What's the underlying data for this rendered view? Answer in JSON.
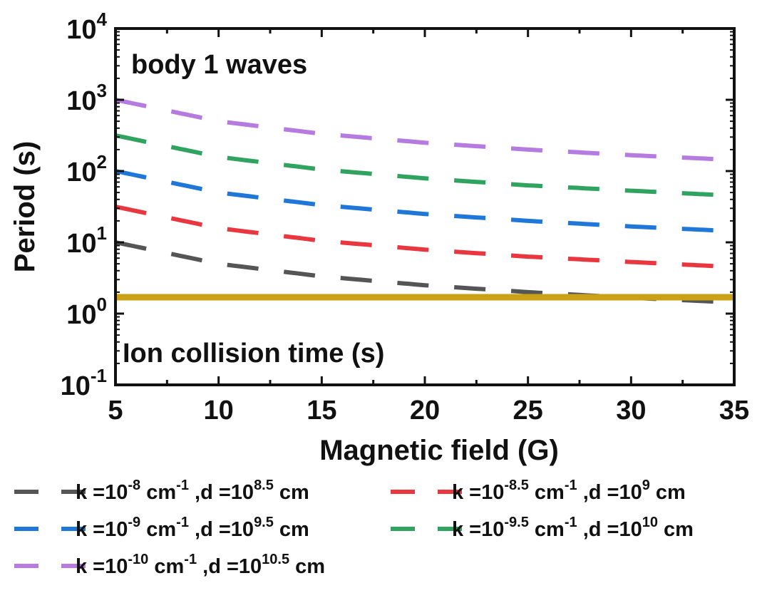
{
  "chart_data": {
    "type": "line",
    "title": "",
    "xlabel": "Magnetic field (G)",
    "ylabel": "Period (s)",
    "xlim": [
      5,
      35
    ],
    "ylim": [
      0.1,
      10000
    ],
    "yscale": "log",
    "grid": false,
    "legend_position": "bottom",
    "x_ticks": [
      "5",
      "10",
      "15",
      "20",
      "25",
      "30",
      "35"
    ],
    "y_ticks": [
      {
        "base": "10",
        "exp": "-1",
        "value": 0.1
      },
      {
        "base": "10",
        "exp": "0",
        "value": 1
      },
      {
        "base": "10",
        "exp": "1",
        "value": 10
      },
      {
        "base": "10",
        "exp": "2",
        "value": 100
      },
      {
        "base": "10",
        "exp": "3",
        "value": 1000
      },
      {
        "base": "10",
        "exp": "4",
        "value": 10000
      }
    ],
    "annotations": [
      "body 1 waves",
      "Ion collision time (s)"
    ],
    "x": [
      5,
      10,
      15,
      20,
      25,
      30,
      35
    ],
    "series": [
      {
        "color": "#555555",
        "style": "dashed",
        "values": [
          10,
          5,
          3.33,
          2.5,
          2.0,
          1.67,
          1.43
        ],
        "legend": {
          "k_exp": "-8",
          "cm_exp": "-1",
          "d_exp": "8.5"
        }
      },
      {
        "color": "#e8373e",
        "style": "dashed",
        "values": [
          31.6,
          15.8,
          10.5,
          7.9,
          6.3,
          5.3,
          4.5
        ],
        "legend": {
          "k_exp": "-8.5",
          "cm_exp": "-1",
          "d_exp": "9"
        }
      },
      {
        "color": "#1f77d8",
        "style": "dashed",
        "values": [
          100,
          50,
          33.3,
          25,
          20,
          16.7,
          14.3
        ],
        "legend": {
          "k_exp": "-9",
          "cm_exp": "-1",
          "d_exp": "9.5"
        }
      },
      {
        "color": "#2fa35f",
        "style": "dashed",
        "values": [
          316,
          158,
          105,
          79,
          63,
          53,
          45
        ],
        "legend": {
          "k_exp": "-9.5",
          "cm_exp": "-1",
          "d_exp": "10"
        }
      },
      {
        "color": "#b57be0",
        "style": "dashed",
        "values": [
          1000,
          500,
          333,
          250,
          200,
          167,
          143
        ],
        "legend": {
          "k_exp": "-10",
          "cm_exp": "-1",
          "d_exp": "10.5"
        }
      },
      {
        "color": "#c9a016",
        "style": "solid",
        "values": [
          1.7,
          1.7,
          1.7,
          1.7,
          1.7,
          1.7,
          1.7
        ]
      }
    ],
    "legend_strings": {
      "k": "k =",
      "ten": "10",
      "cm": " cm",
      "d": " ,d =",
      "unit": " cm"
    }
  }
}
